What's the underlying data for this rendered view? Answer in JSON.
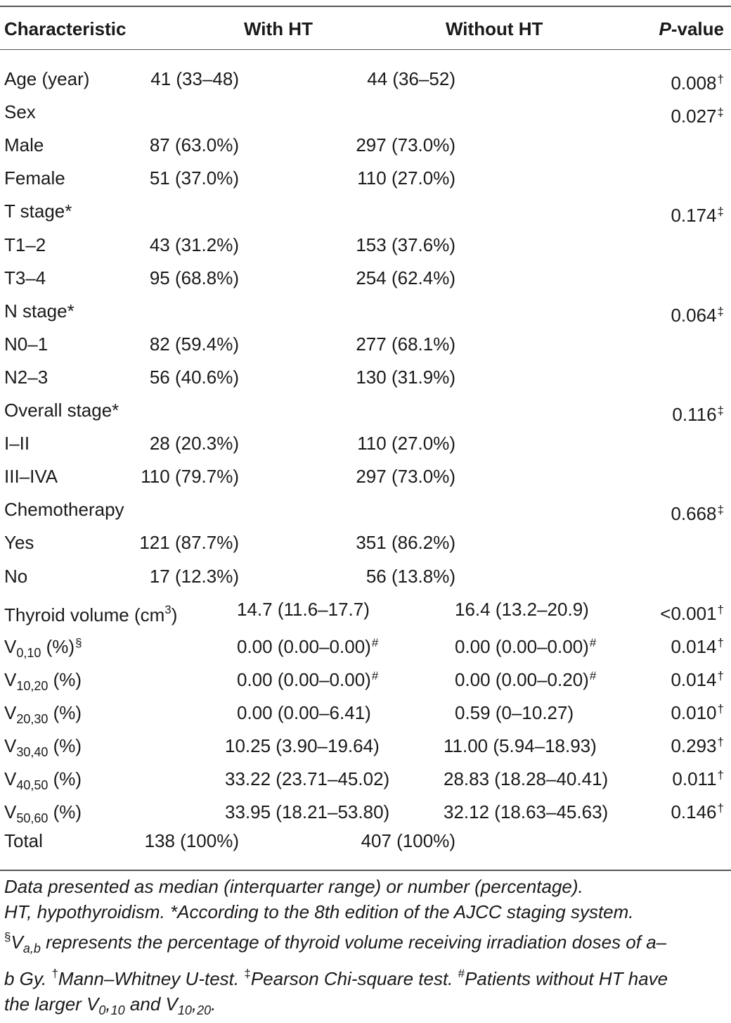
{
  "headers": {
    "characteristic": "Characteristic",
    "with_ht": "With HT",
    "without_ht": "Without HT",
    "p_value_italic": "P",
    "p_value_rest": "-value"
  },
  "rows": [
    {
      "label": "Age (year)",
      "with": "41 (33–48)",
      "without": "44 (36–52)",
      "p": "0.008",
      "mark": "†"
    },
    {
      "label": "Sex",
      "with": "",
      "without": "",
      "p": "0.027",
      "mark": "‡"
    },
    {
      "label": "Male",
      "with": "87 (63.0%)",
      "without": "297 (73.0%)",
      "p": "",
      "mark": ""
    },
    {
      "label": "Female",
      "with": "51 (37.0%)",
      "without": "110 (27.0%)",
      "p": "",
      "mark": ""
    },
    {
      "label": "T stage*",
      "with": "",
      "without": "",
      "p": "0.174",
      "mark": "‡"
    },
    {
      "label": "T1–2",
      "with": "43 (31.2%)",
      "without": "153 (37.6%)",
      "p": "",
      "mark": ""
    },
    {
      "label": "T3–4",
      "with": "95 (68.8%)",
      "without": "254 (62.4%)",
      "p": "",
      "mark": ""
    },
    {
      "label": "N stage*",
      "with": "",
      "without": "",
      "p": "0.064",
      "mark": "‡"
    },
    {
      "label": "N0–1",
      "with": "82 (59.4%)",
      "without": "277 (68.1%)",
      "p": "",
      "mark": ""
    },
    {
      "label": "N2–3",
      "with": "56 (40.6%)",
      "without": "130 (31.9%)",
      "p": "",
      "mark": ""
    },
    {
      "label": "Overall stage*",
      "with": "",
      "without": "",
      "p": "0.116",
      "mark": "‡"
    },
    {
      "label": "I–II",
      "with": "28 (20.3%)",
      "without": "110 (27.0%)",
      "p": "",
      "mark": ""
    },
    {
      "label": "III–IVA",
      "with": "110 (79.7%)",
      "without": "297 (73.0%)",
      "p": "",
      "mark": ""
    },
    {
      "label": "Chemotherapy",
      "with": "",
      "without": "",
      "p": "0.668",
      "mark": "‡"
    },
    {
      "label": "Yes",
      "with": "121 (87.7%)",
      "without": "351 (86.2%)",
      "p": "",
      "mark": ""
    },
    {
      "label": "No",
      "with": "17 (12.3%)",
      "without": "56 (13.8%)",
      "p": "",
      "mark": ""
    }
  ],
  "thyroid_row": {
    "label": "Thyroid volume (cm",
    "label_sup": "3",
    "label_end": ")",
    "with": "14.7 (11.6–17.7)",
    "without": "16.4 (13.2–20.9)",
    "p": "<0.001",
    "mark": "†"
  },
  "v_rows": [
    {
      "label": "V",
      "sub": "0,10",
      "suffix": " (%)",
      "suffix_sup": "§",
      "with": "0.00 (0.00–0.00)",
      "with_mark": "#",
      "without": "0.00 (0.00–0.00)",
      "without_mark": "#",
      "p": "0.014",
      "mark": "†"
    },
    {
      "label": "V",
      "sub": "10,20",
      "suffix": " (%)",
      "suffix_sup": "",
      "with": "0.00 (0.00–0.00)",
      "with_mark": "#",
      "without": "0.00 (0.00–0.20)",
      "without_mark": "#",
      "p": "0.014",
      "mark": "†"
    },
    {
      "label": "V",
      "sub": "20,30",
      "suffix": " (%)",
      "suffix_sup": "",
      "with": "0.00 (0.00–6.41)",
      "with_mark": "",
      "without": "0.59 (0–10.27)",
      "without_mark": "",
      "p": "0.010",
      "mark": "†"
    },
    {
      "label": "V",
      "sub": "30,40",
      "suffix": " (%)",
      "suffix_sup": "",
      "with": "10.25 (3.90–19.64)",
      "with_mark": "",
      "without": "11.00 (5.94–18.93)",
      "without_mark": "",
      "p": "0.293",
      "mark": "†"
    },
    {
      "label": "V",
      "sub": "40,50",
      "suffix": " (%)",
      "suffix_sup": "",
      "with": "33.22 (23.71–45.02)",
      "with_mark": "",
      "without": "28.83 (18.28–40.41)",
      "without_mark": "",
      "p": "0.011",
      "mark": "†"
    },
    {
      "label": "V",
      "sub": "50,60",
      "suffix": " (%)",
      "suffix_sup": "",
      "with": "33.95 (18.21–53.80)",
      "with_mark": "",
      "without": "32.12 (18.63–45.63)",
      "without_mark": "",
      "p": "0.146",
      "mark": "†"
    }
  ],
  "total_row": {
    "label": "Total",
    "with": "138 (100%)",
    "without": "407 (100%)"
  },
  "footnote": {
    "l1": "Data presented as median (interquarter range) or number (percentage).",
    "l2": "HT, hypothyroidism. *According to the 8th edition of the AJCC staging system.",
    "l3_sup": "§",
    "l3_v": "V",
    "l3_sub": "a,b",
    "l3_rest": " represents the percentage of thyroid volume receiving irradiation doses of a–",
    "l4_a": "b Gy. ",
    "l4_sup1": "†",
    "l4_b": "Mann–Whitney U-test. ",
    "l4_sup2": "‡",
    "l4_c": "Pearson Chi-square test. ",
    "l4_sup3": "#",
    "l4_d": "Patients without HT have",
    "l5_a": "the larger V",
    "l5_sub1": "0",
    "l5_b": ",",
    "l5_sub2": "10",
    "l5_c": " and V",
    "l5_sub3": "10",
    "l5_d": ",",
    "l5_sub4": "20",
    "l5_e": "."
  }
}
